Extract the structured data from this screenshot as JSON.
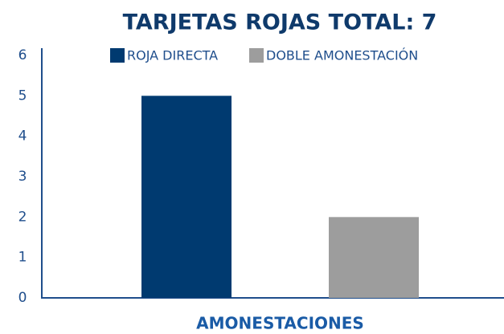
{
  "chart_data": {
    "type": "bar",
    "title": "TARJETAS ROJAS TOTAL: 7",
    "categories": [
      "AMONESTACIONES"
    ],
    "series": [
      {
        "name": "ROJA DIRECTA",
        "color": "#003a70",
        "values": [
          5
        ]
      },
      {
        "name": "DOBLE AMONESTACIÓN",
        "color": "#9d9d9d",
        "values": [
          2
        ]
      }
    ],
    "ylim": [
      0,
      6
    ],
    "yticks": [
      0,
      1,
      2,
      3,
      4,
      5,
      6
    ],
    "grid": false
  }
}
